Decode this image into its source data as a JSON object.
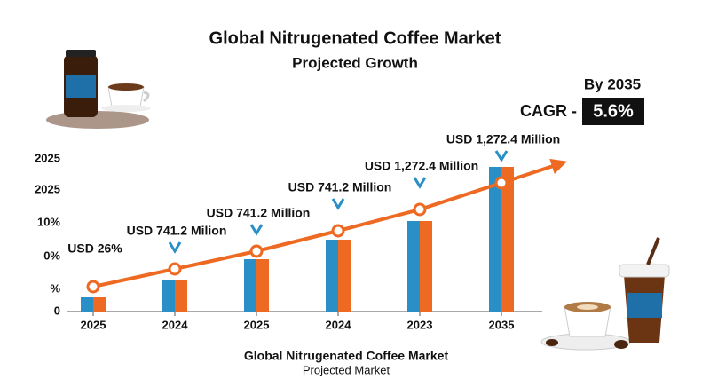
{
  "chart_data": {
    "type": "bar",
    "title": "Global Nitrugenated Coffee Market",
    "subtitle": "Projected Growth",
    "footer_title": "Global Nitrugenated Coffee Market",
    "footer_subtitle": "Projected Market",
    "cagr": {
      "period": "By 2035",
      "label": "CAGR -",
      "value": "5.6%"
    },
    "categories": [
      "2025",
      "2024",
      "2025",
      "2024",
      "2023",
      "2035"
    ],
    "series": [
      {
        "color": "#2a8fc6",
        "values": [
          16,
          36,
          59,
          81,
          102,
          163
        ]
      },
      {
        "color": "#ee6a22",
        "values": [
          16,
          36,
          59,
          81,
          102,
          163
        ]
      }
    ],
    "trend": {
      "color": "#ee6a22",
      "values": [
        28,
        48,
        68,
        91,
        115,
        145
      ]
    },
    "annotations": [
      "USD 26%",
      "USD 741.2 Milion",
      "USD 741.2 Million",
      "USD 741.2 Million",
      "USD 1,272.4 Million",
      "USD 1,272.4 Million"
    ],
    "ylim": [
      0,
      200
    ],
    "yticks": [
      0,
      {
        "value": 25,
        "label": "%"
      },
      {
        "value": 62,
        "label": "0%"
      },
      {
        "value": 100,
        "label": "10%"
      },
      {
        "value": 137,
        "label": "2025"
      },
      {
        "value": 172,
        "label": "2025"
      }
    ]
  }
}
